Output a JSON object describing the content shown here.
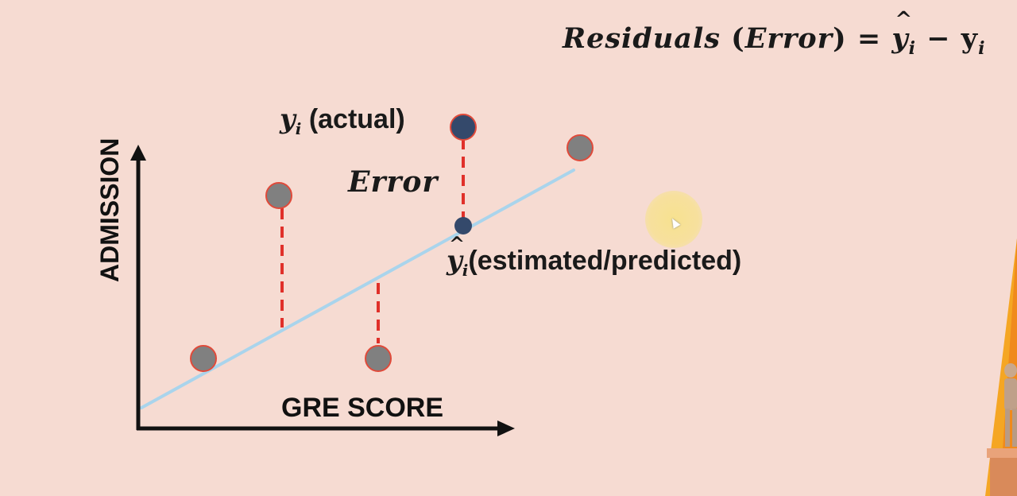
{
  "formula": {
    "lhs_word": "Residuals",
    "lhs_paren": "(Error)",
    "equals": "=",
    "y_hat": "y",
    "sub_i": "i",
    "minus": "−",
    "y": "y"
  },
  "labels": {
    "actual_symbol": "y",
    "actual_sub": "i",
    "actual_text": " (actual)",
    "error": "Error",
    "predicted_symbol": "y",
    "predicted_sub": "i",
    "predicted_text": "(estimated/predicted)",
    "x_axis": "GRE SCORE",
    "y_axis": "ADMISSION"
  },
  "colors": {
    "background": "#f6dbd2",
    "regression_line": "#a9d4ec",
    "error_lines": "#e0302a",
    "point_fill": "#808080",
    "point_stroke": "#e04a3a",
    "highlight_point": "#34496b",
    "axis": "#111111",
    "cursor_halo": "#f7e28c"
  }
}
